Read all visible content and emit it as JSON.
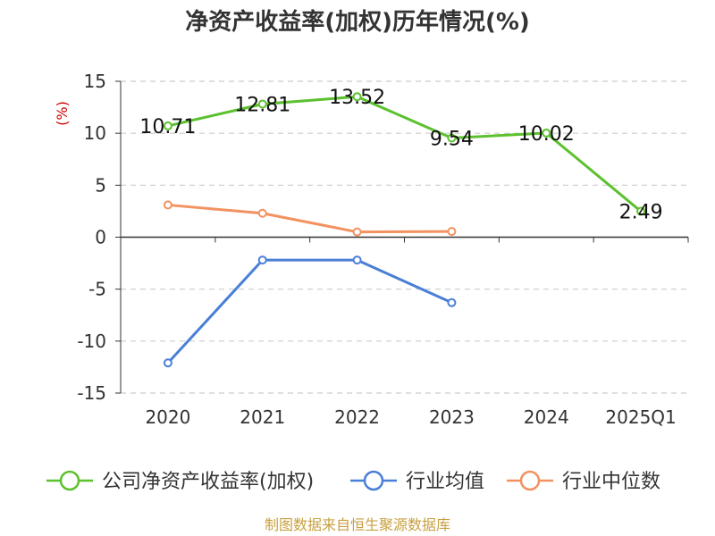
{
  "chart_data": {
    "type": "line",
    "title": "净资产收益率(加权)历年情况(%)",
    "ylabel": "(%)",
    "categories": [
      "2020",
      "2021",
      "2022",
      "2023",
      "2024",
      "2025Q1"
    ],
    "ylim": [
      -15,
      15
    ],
    "yticks": [
      15,
      10,
      5,
      0,
      -5,
      -10,
      -15
    ],
    "ytick_labels": [
      "15",
      "10",
      "5",
      "0",
      "-5",
      "-10",
      "-15"
    ],
    "grid": true,
    "legend_position": "bottom",
    "series": [
      {
        "name": "公司净资产收益率(加权)",
        "color": "#5cc12e",
        "values": [
          10.71,
          12.81,
          13.52,
          9.54,
          10.02,
          2.49
        ],
        "labels": [
          "10.71",
          "12.81",
          "13.52",
          "9.54",
          "10.02",
          "2.49"
        ],
        "show_labels": true
      },
      {
        "name": "行业均值",
        "color": "#4a7fd8",
        "values": [
          -12.1,
          -2.2,
          -2.2,
          -6.3,
          null,
          null
        ],
        "show_labels": false
      },
      {
        "name": "行业中位数",
        "color": "#f29260",
        "values": [
          3.1,
          2.3,
          0.5,
          0.55,
          null,
          null
        ],
        "show_labels": false
      }
    ]
  },
  "source_text": "制图数据来自恒生聚源数据库"
}
